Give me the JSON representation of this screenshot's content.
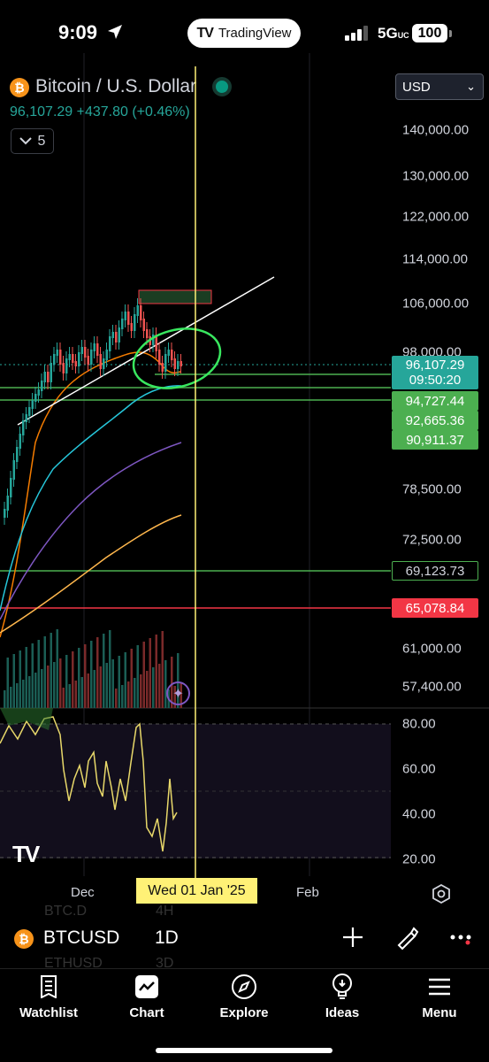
{
  "status_bar": {
    "time": "9:09",
    "network": "5G",
    "network_suffix": "UC",
    "battery": "100",
    "app_pill": "TradingView"
  },
  "header": {
    "symbol_title": "Bitcoin / U.S. Dollar",
    "price_line": "96,107.29  +437.80 (+0.46%)",
    "indicators_count": "5",
    "currency": "USD",
    "currency_icon": "chevron-down-icon",
    "symbol_icon": "bitcoin-icon"
  },
  "price_axis": {
    "ticks": [
      "140,000.00",
      "130,000.00",
      "122,000.00",
      "114,000.00",
      "106,000.00",
      "98,000.00",
      "78,500.00",
      "72,500.00",
      "61,000.00",
      "57,400.00"
    ],
    "current_price": "96,107.29",
    "countdown": "09:50:20",
    "levels": [
      "94,727.44",
      "92,665.36",
      "90,911.37",
      "69,123.73",
      "65,078.84"
    ]
  },
  "rsi_axis": {
    "ticks": [
      "80.00",
      "60.00",
      "40.00",
      "20.00"
    ]
  },
  "time_axis": {
    "ticks": [
      "Dec",
      "Feb"
    ],
    "crosshair_date": "Wed 01 Jan '25"
  },
  "symbol_bar": {
    "symbol": "BTCUSD",
    "interval": "1D",
    "ghost_symbols": [
      "BTC.D",
      "ETHUSD"
    ],
    "ghost_intervals": [
      "4H",
      "3D"
    ]
  },
  "tabs": [
    {
      "label": "Watchlist",
      "icon": "watchlist-icon"
    },
    {
      "label": "Chart",
      "icon": "chart-icon"
    },
    {
      "label": "Explore",
      "icon": "compass-icon"
    },
    {
      "label": "Ideas",
      "icon": "lightbulb-icon"
    },
    {
      "label": "Menu",
      "icon": "menu-icon"
    }
  ],
  "colors": {
    "up": "#26a69a",
    "down": "#ef5350",
    "crosshair": "#fff176",
    "level_green": "#4caf50",
    "level_red": "#f23645",
    "accent": "#f7931a"
  }
}
